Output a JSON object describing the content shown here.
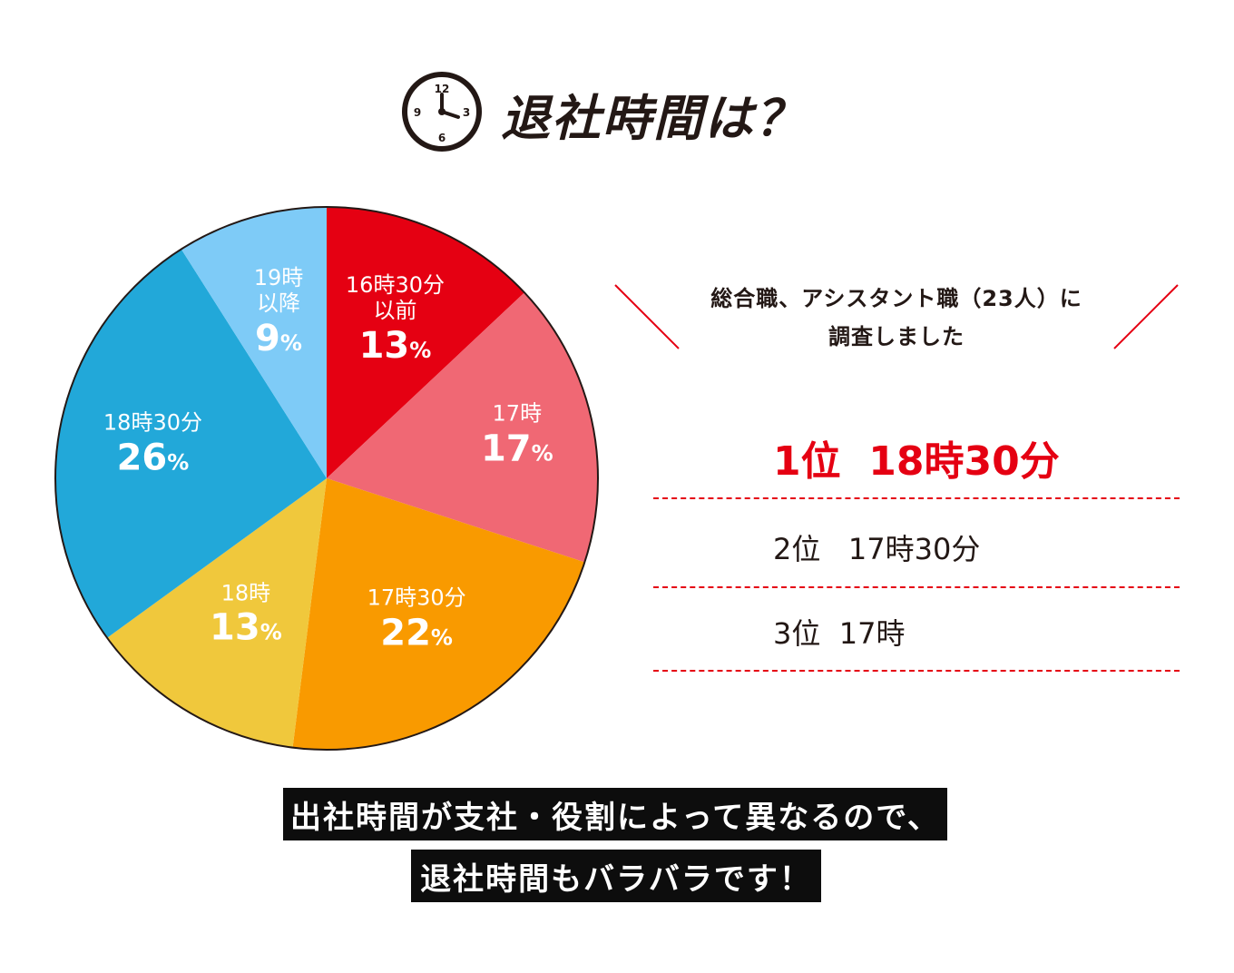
{
  "header": {
    "title": "退社時間は？",
    "clock_icon": "clock-icon",
    "clock_numbers": [
      "12",
      "3",
      "6",
      "9"
    ]
  },
  "chart_data": {
    "type": "pie",
    "title": "退社時間は？",
    "slices": [
      {
        "label": "16時30分以前",
        "label_lines": [
          "16時30分",
          "以前"
        ],
        "value": 13,
        "value_text": "13",
        "unit": "%",
        "color": "#e50012"
      },
      {
        "label": "17時",
        "label_lines": [
          "17時"
        ],
        "value": 17,
        "value_text": "17",
        "unit": "%",
        "color": "#f06874"
      },
      {
        "label": "17時30分",
        "label_lines": [
          "17時30分"
        ],
        "value": 22,
        "value_text": "22",
        "unit": "%",
        "color": "#f99a00"
      },
      {
        "label": "18時",
        "label_lines": [
          "18時"
        ],
        "value": 13,
        "value_text": "13",
        "unit": "%",
        "color": "#f0c83c"
      },
      {
        "label": "18時30分",
        "label_lines": [
          "18時30分"
        ],
        "value": 26,
        "value_text": "26",
        "unit": "%",
        "color": "#22a8d9"
      },
      {
        "label": "19時以降",
        "label_lines": [
          "19時",
          "以降"
        ],
        "value": 9,
        "value_text": "9",
        "unit": "%",
        "color": "#7ecbf7"
      }
    ],
    "start": "12 o'clock, clockwise",
    "legend": "none"
  },
  "survey": {
    "line1": "総合職、アシスタント職（23人）に",
    "line2": "調査しました"
  },
  "ranking": [
    {
      "rank": "1位",
      "time": "18時30分"
    },
    {
      "rank": "2位",
      "time": "17時30分"
    },
    {
      "rank": "3位",
      "time": "17時"
    }
  ],
  "footer": {
    "line1": "出社時間が支社・役割によって異なるので、",
    "line2": "退社時間もバラバラです！"
  },
  "colors": {
    "accent_red": "#e50012",
    "text_dark": "#231815",
    "banner_bg": "#0d0d0d"
  }
}
